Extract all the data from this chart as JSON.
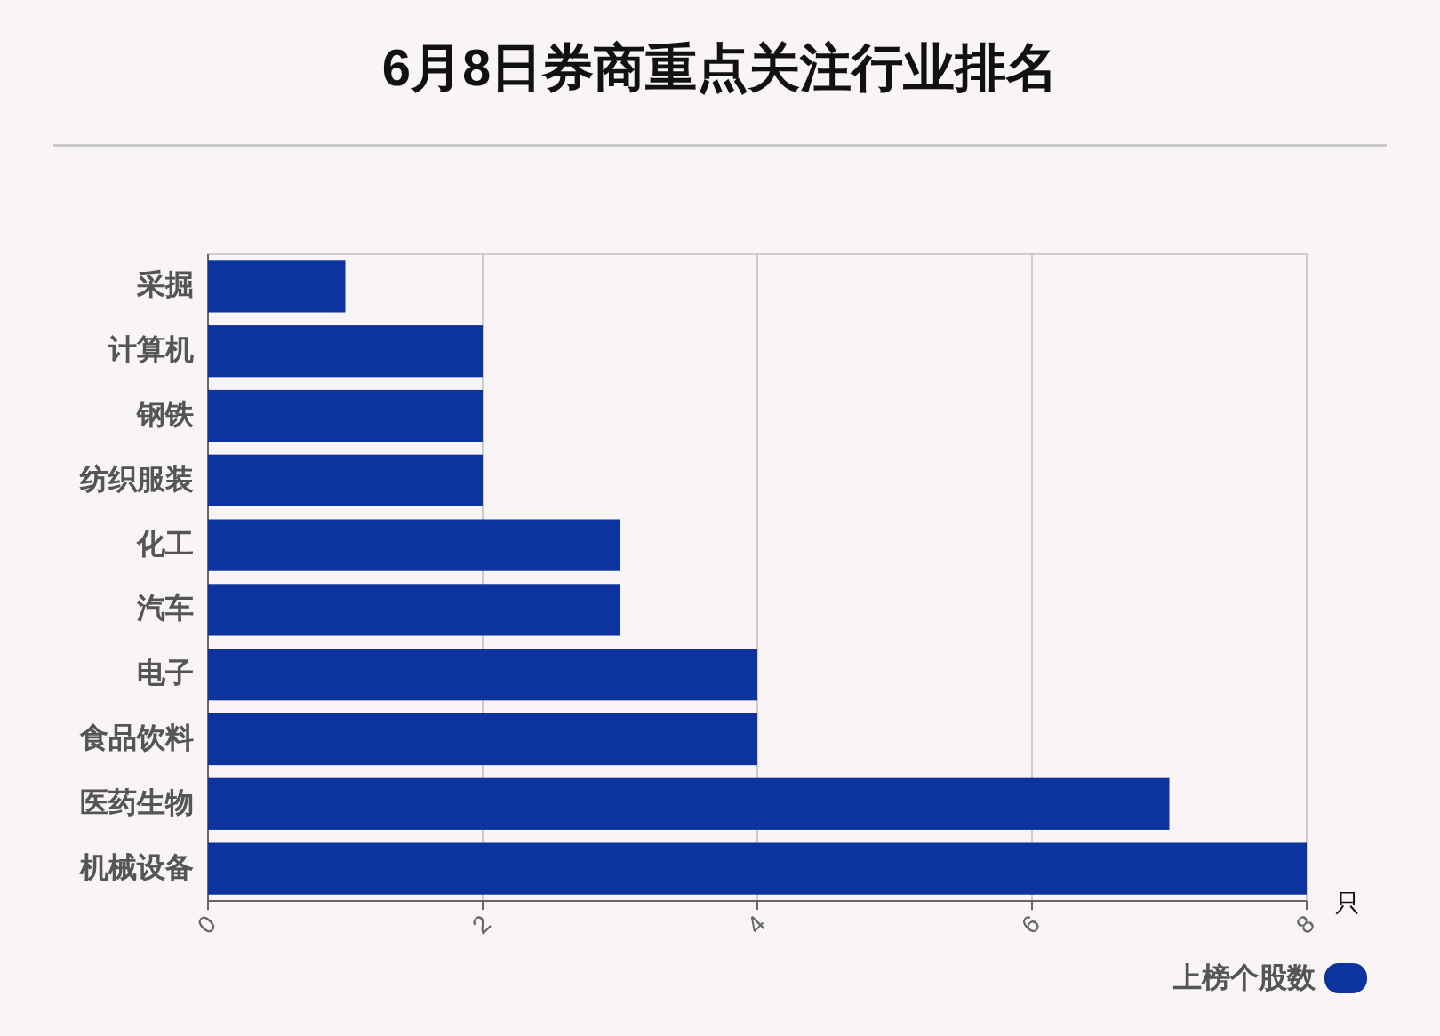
{
  "chart_data": {
    "type": "bar",
    "title": "6月8日券商重点关注行业排名",
    "xlabel": "只",
    "orientation": "horizontal",
    "categories": [
      "采掘",
      "计算机",
      "钢铁",
      "纺织服装",
      "化工",
      "汽车",
      "电子",
      "食品饮料",
      "医药生物",
      "机械设备"
    ],
    "series": [
      {
        "name": "上榜个股数",
        "color": "#0d349e",
        "values": [
          1,
          2,
          2,
          2,
          3,
          3,
          4,
          4,
          7,
          8
        ]
      }
    ],
    "xlim": [
      0,
      8
    ],
    "xticks": [
      0,
      2,
      4,
      6,
      8
    ],
    "grid": "x",
    "legend": "bottom right"
  }
}
